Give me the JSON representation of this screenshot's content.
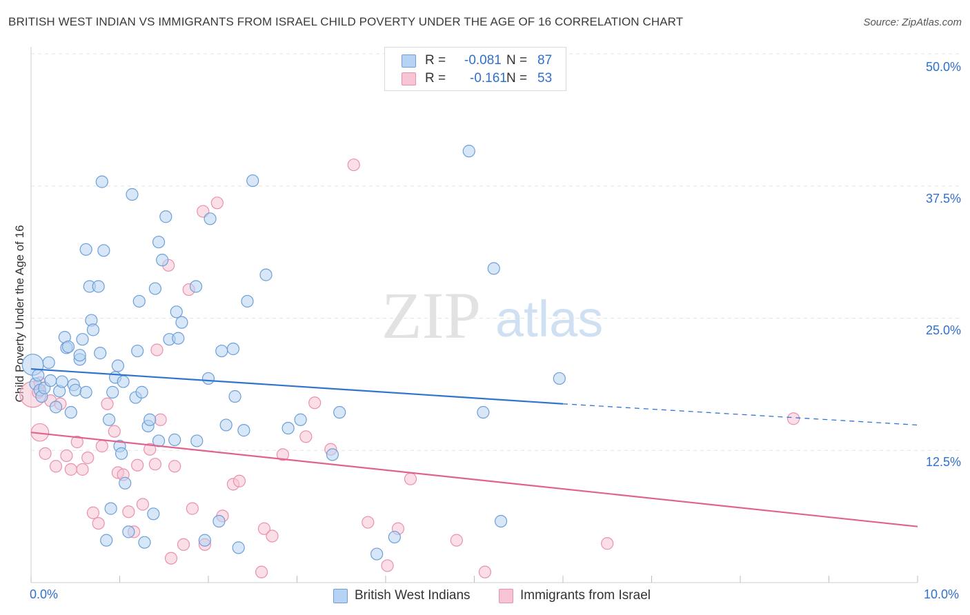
{
  "title": "BRITISH WEST INDIAN VS IMMIGRANTS FROM ISRAEL CHILD POVERTY UNDER THE AGE OF 16 CORRELATION CHART",
  "source": "Source: ZipAtlas.com",
  "watermark": {
    "part1": "ZIP",
    "part2": "atlas"
  },
  "colors": {
    "blue_fill": "#b7d3f3",
    "blue_stroke": "#6b9fd8",
    "blue_line": "#2e74d0",
    "pink_fill": "#f7c4d3",
    "pink_stroke": "#ea8fae",
    "pink_line": "#e0628e",
    "tick_text": "#2f6fd0",
    "grid": "#e3e3e3"
  },
  "legend_top": {
    "rows": [
      {
        "r_label": "R =",
        "r_value": "-0.081",
        "n_label": "N =",
        "n_value": "87",
        "color": "blue"
      },
      {
        "r_label": "R =",
        "r_value": "-0.161",
        "n_label": "N =",
        "n_value": "53",
        "color": "pink"
      }
    ]
  },
  "legend_bottom": [
    {
      "label": "British West Indians",
      "color": "blue"
    },
    {
      "label": "Immigrants from Israel",
      "color": "pink"
    }
  ],
  "chart_data": {
    "type": "scatter",
    "title": "BRITISH WEST INDIAN VS IMMIGRANTS FROM ISRAEL CHILD POVERTY UNDER THE AGE OF 16 CORRELATION CHART",
    "xlabel": "",
    "ylabel": "Child Poverty Under the Age of 16",
    "xlim": [
      0,
      10
    ],
    "ylim": [
      0,
      50
    ],
    "x_tick_labels": [
      "0.0%",
      "10.0%"
    ],
    "y_ticks": [
      12.5,
      25,
      37.5,
      50
    ],
    "y_tick_labels": [
      "12.5%",
      "25.0%",
      "37.5%",
      "50.0%"
    ],
    "grid": "horizontal dashed",
    "legend_position": "top-center",
    "series": [
      {
        "name": "British West Indians",
        "color": "blue",
        "trend": {
          "x0": 0.0,
          "y0": 20.2,
          "x1": 6.0,
          "y1": 16.9,
          "dashed_to_x": 10.0,
          "dashed_to_y": 14.9
        },
        "points": [
          [
            0.02,
            20.6,
            1.8
          ],
          [
            0.05,
            18.8,
            1
          ],
          [
            0.08,
            19.6,
            1
          ],
          [
            0.1,
            18.2,
            1
          ],
          [
            0.12,
            17.6,
            1
          ],
          [
            0.15,
            18.4,
            1
          ],
          [
            0.2,
            20.8,
            1
          ],
          [
            0.22,
            19.1,
            1
          ],
          [
            0.28,
            16.6,
            1
          ],
          [
            0.32,
            18.1,
            1
          ],
          [
            0.35,
            19.0,
            1
          ],
          [
            0.38,
            23.2,
            1
          ],
          [
            0.4,
            22.2,
            1
          ],
          [
            0.42,
            22.3,
            1
          ],
          [
            0.45,
            16.1,
            1
          ],
          [
            0.48,
            18.7,
            1
          ],
          [
            0.5,
            18.2,
            1
          ],
          [
            0.55,
            21.1,
            1
          ],
          [
            0.55,
            21.5,
            1
          ],
          [
            0.58,
            23.0,
            1
          ],
          [
            0.62,
            18.0,
            1
          ],
          [
            0.62,
            31.5,
            1
          ],
          [
            0.66,
            28.0,
            1
          ],
          [
            0.68,
            24.8,
            1
          ],
          [
            0.7,
            23.9,
            1
          ],
          [
            0.76,
            28.0,
            1
          ],
          [
            0.78,
            21.7,
            1
          ],
          [
            0.8,
            37.9,
            1
          ],
          [
            0.82,
            31.4,
            1
          ],
          [
            0.88,
            15.4,
            1
          ],
          [
            0.92,
            18.0,
            1
          ],
          [
            0.95,
            19.4,
            1
          ],
          [
            0.98,
            20.5,
            1
          ],
          [
            1.0,
            12.9,
            1
          ],
          [
            1.02,
            12.2,
            1
          ],
          [
            1.04,
            19.0,
            1
          ],
          [
            1.06,
            9.4,
            1
          ],
          [
            1.1,
            4.8,
            1
          ],
          [
            1.14,
            36.7,
            1
          ],
          [
            1.18,
            17.5,
            1
          ],
          [
            1.2,
            21.9,
            1
          ],
          [
            1.22,
            26.6,
            1
          ],
          [
            1.25,
            18.0,
            1
          ],
          [
            1.28,
            3.8,
            1
          ],
          [
            1.32,
            14.8,
            1
          ],
          [
            1.34,
            15.4,
            1
          ],
          [
            1.38,
            6.5,
            1
          ],
          [
            1.4,
            27.8,
            1
          ],
          [
            1.44,
            13.4,
            1
          ],
          [
            1.44,
            32.2,
            1
          ],
          [
            1.48,
            30.5,
            1
          ],
          [
            1.52,
            34.6,
            1
          ],
          [
            1.56,
            23.0,
            1
          ],
          [
            1.62,
            13.5,
            1
          ],
          [
            1.64,
            25.6,
            1
          ],
          [
            1.66,
            23.1,
            1
          ],
          [
            1.7,
            24.6,
            1
          ],
          [
            1.86,
            28.0,
            1
          ],
          [
            1.87,
            13.4,
            1
          ],
          [
            1.96,
            4.0,
            1
          ],
          [
            2.0,
            19.3,
            1
          ],
          [
            2.02,
            34.4,
            1
          ],
          [
            2.12,
            5.8,
            1
          ],
          [
            2.15,
            21.9,
            1
          ],
          [
            2.2,
            14.9,
            1
          ],
          [
            2.28,
            22.1,
            1
          ],
          [
            2.3,
            17.6,
            1
          ],
          [
            2.34,
            3.3,
            1
          ],
          [
            2.4,
            14.4,
            1
          ],
          [
            2.44,
            26.6,
            1
          ],
          [
            2.5,
            38.0,
            1
          ],
          [
            2.65,
            29.1,
            1
          ],
          [
            2.9,
            14.6,
            1
          ],
          [
            3.04,
            15.4,
            1
          ],
          [
            3.4,
            12.1,
            1
          ],
          [
            3.48,
            16.1,
            1
          ],
          [
            3.9,
            2.7,
            1
          ],
          [
            4.1,
            4.3,
            1
          ],
          [
            4.94,
            40.8,
            1
          ],
          [
            5.1,
            16.1,
            1
          ],
          [
            5.22,
            29.7,
            1
          ],
          [
            5.3,
            5.8,
            1
          ],
          [
            5.96,
            19.3,
            1
          ],
          [
            0.75,
            1.0,
            0.0
          ],
          [
            0.85,
            4.0,
            1
          ],
          [
            0.9,
            7.0,
            1
          ],
          [
            1.0,
            12.0,
            0.0
          ]
        ]
      },
      {
        "name": "Immigrants from Israel",
        "color": "pink",
        "trend": {
          "x0": 0.0,
          "y0": 14.2,
          "x1": 10.0,
          "y1": 5.3
        },
        "points": [
          [
            0.02,
            17.8,
            2.2
          ],
          [
            0.08,
            18.0,
            1
          ],
          [
            0.1,
            18.9,
            1
          ],
          [
            0.1,
            14.2,
            1.5
          ],
          [
            0.16,
            12.2,
            1
          ],
          [
            0.22,
            17.2,
            1
          ],
          [
            0.28,
            11.0,
            1
          ],
          [
            0.33,
            16.9,
            1
          ],
          [
            0.4,
            12.0,
            1
          ],
          [
            0.45,
            10.7,
            1
          ],
          [
            0.52,
            13.3,
            1
          ],
          [
            0.58,
            10.7,
            1
          ],
          [
            0.64,
            11.8,
            1
          ],
          [
            0.7,
            6.6,
            1
          ],
          [
            0.76,
            5.6,
            1
          ],
          [
            0.8,
            12.9,
            1
          ],
          [
            0.86,
            16.9,
            1
          ],
          [
            0.94,
            14.3,
            1
          ],
          [
            0.98,
            10.4,
            1
          ],
          [
            1.04,
            10.2,
            1
          ],
          [
            1.1,
            6.7,
            1
          ],
          [
            1.16,
            4.8,
            1
          ],
          [
            1.2,
            11.1,
            1
          ],
          [
            1.26,
            7.4,
            1
          ],
          [
            1.34,
            12.6,
            1
          ],
          [
            1.4,
            11.2,
            1
          ],
          [
            1.42,
            22.0,
            1
          ],
          [
            1.46,
            15.4,
            1
          ],
          [
            1.55,
            30.0,
            1
          ],
          [
            1.58,
            2.3,
            1
          ],
          [
            1.62,
            11.0,
            1
          ],
          [
            1.72,
            3.6,
            1
          ],
          [
            1.78,
            27.7,
            1
          ],
          [
            1.82,
            7.0,
            1
          ],
          [
            1.94,
            35.1,
            1
          ],
          [
            1.96,
            3.6,
            1
          ],
          [
            2.1,
            35.9,
            1
          ],
          [
            2.16,
            6.3,
            1
          ],
          [
            2.28,
            9.3,
            1
          ],
          [
            2.35,
            9.6,
            1
          ],
          [
            2.6,
            1.0,
            1
          ],
          [
            2.63,
            5.1,
            1
          ],
          [
            2.72,
            4.4,
            1
          ],
          [
            2.84,
            12.1,
            1
          ],
          [
            3.1,
            13.8,
            1
          ],
          [
            3.2,
            17.0,
            1
          ],
          [
            3.38,
            12.6,
            1
          ],
          [
            3.64,
            39.5,
            1
          ],
          [
            3.8,
            5.7,
            1
          ],
          [
            4.02,
            1.6,
            1
          ],
          [
            4.14,
            5.1,
            1
          ],
          [
            4.28,
            9.8,
            1
          ],
          [
            4.8,
            4.0,
            1
          ],
          [
            5.12,
            1.0,
            1
          ],
          [
            6.5,
            3.7,
            1
          ],
          [
            8.6,
            15.5,
            1
          ],
          [
            1.52,
            15.0,
            0.0
          ]
        ]
      }
    ]
  }
}
